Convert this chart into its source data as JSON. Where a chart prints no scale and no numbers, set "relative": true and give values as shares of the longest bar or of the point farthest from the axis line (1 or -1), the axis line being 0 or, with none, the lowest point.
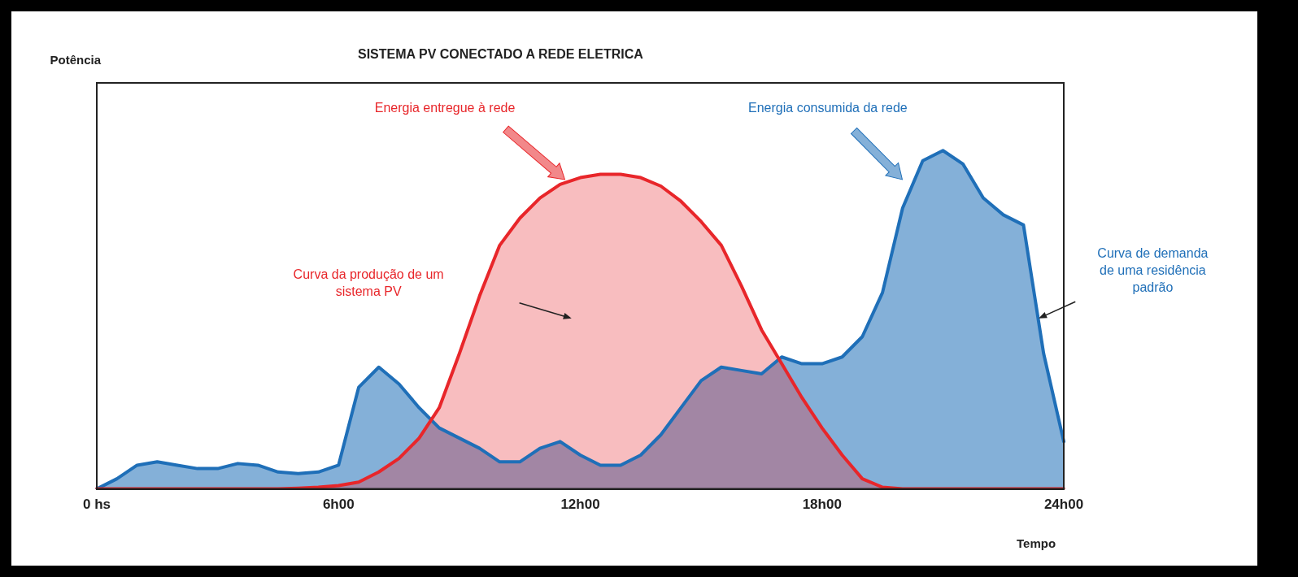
{
  "chart_data": {
    "type": "area",
    "title": "SISTEMA PV CONECTADO A REDE ELETRICA",
    "xlabel": "Tempo",
    "relative": true,
    "legend": false,
    "grid": false,
    "marker": "none",
    "line_style": "solid",
    "categories": [
      "0 hs",
      null,
      null,
      null,
      null,
      null,
      null,
      null,
      null,
      null,
      null,
      null,
      "6h00",
      null,
      null,
      null,
      null,
      null,
      null,
      null,
      null,
      null,
      null,
      null,
      "12h00",
      null,
      null,
      null,
      null,
      null,
      null,
      null,
      null,
      null,
      null,
      null,
      "18h00",
      null,
      null,
      null,
      null,
      null,
      null,
      null,
      null,
      null,
      null,
      null,
      "24h00"
    ],
    "series": [
      {
        "color": "#e8262a",
        "values": [
          0,
          0,
          0,
          0,
          0,
          0,
          0,
          0,
          0,
          0,
          0.002,
          0.005,
          0.01,
          0.02,
          0.05,
          0.09,
          0.15,
          0.24,
          0.4,
          0.57,
          0.72,
          0.8,
          0.86,
          0.9,
          0.92,
          0.93,
          0.93,
          0.92,
          0.895,
          0.85,
          0.79,
          0.72,
          0.6,
          0.47,
          0.37,
          0.27,
          0.18,
          0.1,
          0.03,
          0.005,
          0,
          0,
          0,
          0,
          0,
          0,
          0,
          0,
          0
        ]
      },
      {
        "color": "#1f6fb8",
        "values": [
          0,
          0.03,
          0.07,
          0.08,
          0.07,
          0.06,
          0.06,
          0.075,
          0.07,
          0.05,
          0.045,
          0.05,
          0.07,
          0.3,
          0.36,
          0.31,
          0.24,
          0.18,
          0.15,
          0.12,
          0.08,
          0.08,
          0.12,
          0.14,
          0.1,
          0.07,
          0.07,
          0.1,
          0.16,
          0.24,
          0.32,
          0.36,
          0.35,
          0.34,
          0.39,
          0.37,
          0.37,
          0.39,
          0.45,
          0.58,
          0.83,
          0.97,
          1,
          0.96,
          0.86,
          0.81,
          0.78,
          0.4,
          0.14
        ]
      }
    ],
    "annotations": [
      "Energia entregue à rede",
      "Energia consumida da rede",
      "Curva da produção de um sistema PV",
      "Curva de demanda de uma residência padrão",
      "Potência"
    ]
  }
}
